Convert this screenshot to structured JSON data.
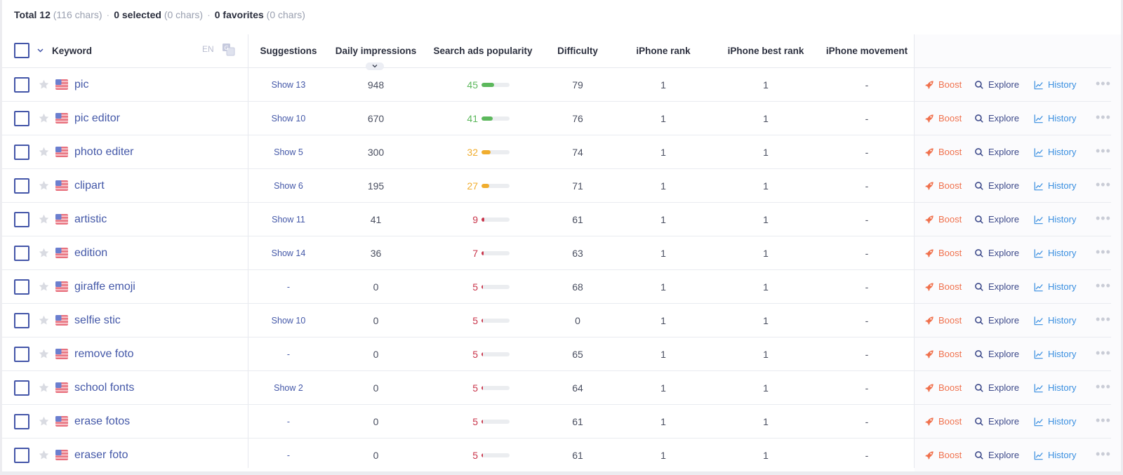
{
  "summary": {
    "total_label": "Total 12",
    "total_chars": "(116 chars)",
    "selected_label": "0 selected",
    "selected_chars": "(0 chars)",
    "favorites_label": "0 favorites",
    "favorites_chars": "(0 chars)"
  },
  "header": {
    "keyword": "Keyword",
    "lang": "EN",
    "suggestions": "Suggestions",
    "daily_impressions": "Daily impressions",
    "search_ads_popularity": "Search ads popularity",
    "difficulty": "Difficulty",
    "iphone_rank": "iPhone rank",
    "iphone_best_rank": "iPhone best rank",
    "iphone_movement": "iPhone movement"
  },
  "actions": {
    "boost": "Boost",
    "explore": "Explore",
    "history": "History",
    "more": "•••"
  },
  "colors": {
    "high": "#5cb85c",
    "medium": "#f0ad2e",
    "low": "#c9354b",
    "accent": "#4458a8"
  },
  "rows": [
    {
      "keyword": "pic",
      "suggestions": "Show 13",
      "impressions": "948",
      "popularity": 45,
      "difficulty": "79",
      "rank": "1",
      "best_rank": "1",
      "movement": "-"
    },
    {
      "keyword": "pic editor",
      "suggestions": "Show 10",
      "impressions": "670",
      "popularity": 41,
      "difficulty": "76",
      "rank": "1",
      "best_rank": "1",
      "movement": "-"
    },
    {
      "keyword": "photo editer",
      "suggestions": "Show 5",
      "impressions": "300",
      "popularity": 32,
      "difficulty": "74",
      "rank": "1",
      "best_rank": "1",
      "movement": "-"
    },
    {
      "keyword": "clipart",
      "suggestions": "Show 6",
      "impressions": "195",
      "popularity": 27,
      "difficulty": "71",
      "rank": "1",
      "best_rank": "1",
      "movement": "-"
    },
    {
      "keyword": "artistic",
      "suggestions": "Show 11",
      "impressions": "41",
      "popularity": 9,
      "difficulty": "61",
      "rank": "1",
      "best_rank": "1",
      "movement": "-"
    },
    {
      "keyword": "edition",
      "suggestions": "Show 14",
      "impressions": "36",
      "popularity": 7,
      "difficulty": "63",
      "rank": "1",
      "best_rank": "1",
      "movement": "-"
    },
    {
      "keyword": "giraffe emoji",
      "suggestions": "-",
      "impressions": "0",
      "popularity": 5,
      "difficulty": "68",
      "rank": "1",
      "best_rank": "1",
      "movement": "-"
    },
    {
      "keyword": "selfie stic",
      "suggestions": "Show 10",
      "impressions": "0",
      "popularity": 5,
      "difficulty": "0",
      "rank": "1",
      "best_rank": "1",
      "movement": "-"
    },
    {
      "keyword": "remove foto",
      "suggestions": "-",
      "impressions": "0",
      "popularity": 5,
      "difficulty": "65",
      "rank": "1",
      "best_rank": "1",
      "movement": "-"
    },
    {
      "keyword": "school fonts",
      "suggestions": "Show 2",
      "impressions": "0",
      "popularity": 5,
      "difficulty": "64",
      "rank": "1",
      "best_rank": "1",
      "movement": "-"
    },
    {
      "keyword": "erase fotos",
      "suggestions": "-",
      "impressions": "0",
      "popularity": 5,
      "difficulty": "61",
      "rank": "1",
      "best_rank": "1",
      "movement": "-"
    },
    {
      "keyword": "eraser foto",
      "suggestions": "-",
      "impressions": "0",
      "popularity": 5,
      "difficulty": "61",
      "rank": "1",
      "best_rank": "1",
      "movement": "-"
    }
  ]
}
